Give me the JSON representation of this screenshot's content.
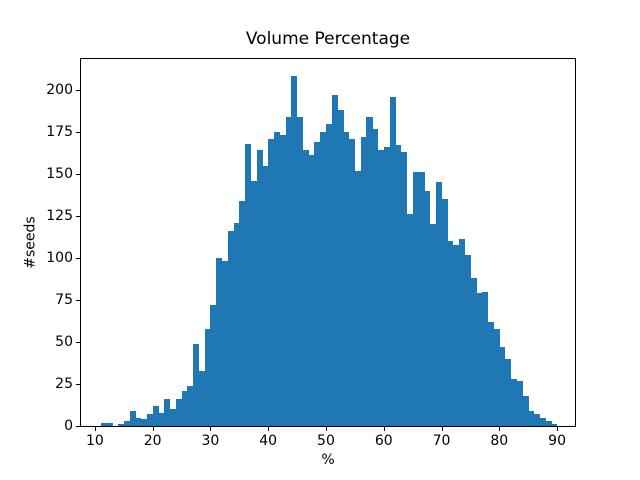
{
  "figure": {
    "background": "#ffffff",
    "text_color": "#000000",
    "axes_color": "#000000"
  },
  "chart_data": {
    "type": "bar",
    "subtype": "histogram",
    "title": "Volume Percentage",
    "xlabel": "%",
    "ylabel": "#seeds",
    "bar_color": "#1f77b4",
    "grid": false,
    "legend": null,
    "xlim": [
      7.6,
      93.1
    ],
    "ylim": [
      0,
      218.4
    ],
    "xticks": [
      10,
      20,
      30,
      40,
      50,
      60,
      70,
      80,
      90
    ],
    "yticks": [
      0,
      25,
      50,
      75,
      100,
      125,
      150,
      175,
      200
    ],
    "bin_start": 11,
    "bin_width": 1,
    "bin_counts": [
      2,
      2,
      0,
      1,
      3,
      9,
      5,
      4,
      7,
      12,
      8,
      16,
      10,
      16,
      21,
      24,
      49,
      33,
      58,
      72,
      100,
      98,
      116,
      121,
      134,
      168,
      146,
      164,
      155,
      171,
      175,
      173,
      184,
      208,
      184,
      164,
      161,
      169,
      175,
      180,
      197,
      188,
      175,
      171,
      152,
      172,
      184,
      177,
      164,
      166,
      196,
      167,
      163,
      126,
      151,
      151,
      140,
      120,
      145,
      135,
      110,
      108,
      111,
      102,
      88,
      79,
      80,
      62,
      58,
      47,
      40,
      28,
      27,
      18,
      9,
      7,
      5,
      3,
      1
    ]
  }
}
